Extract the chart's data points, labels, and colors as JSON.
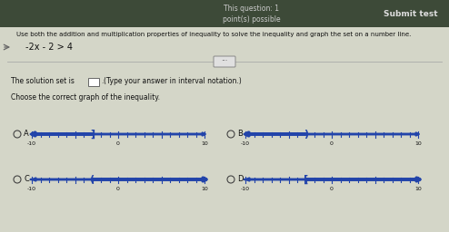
{
  "title_top": "This question: 1",
  "subtitle_top": "point(s) possible",
  "submit_text": "Submit test",
  "instruction": "Use both the addition and multiplication properties of inequality to solve the inequality and graph the set on a number line.",
  "equation": "-2x - 2 > 4",
  "solution_label": "The solution set is",
  "solution_hint": "(Type your answer in interval notation.)",
  "choose_text": "Choose the correct graph of the inequality.",
  "bg_color": "#c8cbbe",
  "panel_color": "#d4d6c8",
  "header_bg": "#3d4a38",
  "header_text_color": "#cccccc",
  "submit_color": "#dddddd",
  "nl_color": "#2244aa",
  "text_color": "#111111",
  "graphs": [
    {
      "label": "A",
      "direction": "left",
      "open": false,
      "cutoff": -3
    },
    {
      "label": "B",
      "direction": "left",
      "open": true,
      "cutoff": -3
    },
    {
      "label": "C",
      "direction": "right",
      "open": true,
      "cutoff": -3
    },
    {
      "label": "D",
      "direction": "right",
      "open": false,
      "cutoff": -3
    }
  ]
}
